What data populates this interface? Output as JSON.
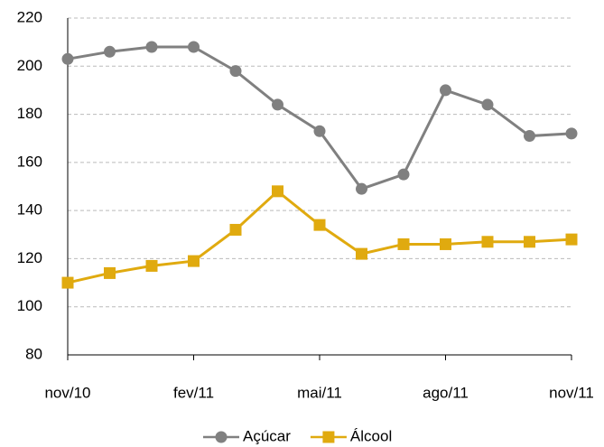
{
  "chart_data": {
    "type": "line",
    "categories": [
      "nov/10",
      null,
      null,
      "fev/11",
      null,
      null,
      "mai/11",
      null,
      null,
      "ago/11",
      null,
      null,
      "nov/11"
    ],
    "series": [
      {
        "name": "Açúcar",
        "color": "#808080",
        "marker": "circle",
        "values": [
          203,
          206,
          208,
          208,
          198,
          184,
          173,
          149,
          155,
          190,
          184,
          171,
          172
        ]
      },
      {
        "name": "Álcool",
        "color": "#e0aa0f",
        "marker": "square",
        "values": [
          110,
          114,
          117,
          119,
          132,
          148,
          134,
          122,
          126,
          126,
          127,
          127,
          128
        ]
      }
    ],
    "ylim": [
      80,
      220
    ],
    "yticks": [
      80,
      100,
      120,
      140,
      160,
      180,
      200,
      220
    ],
    "grid": true,
    "legend": "bottom"
  }
}
